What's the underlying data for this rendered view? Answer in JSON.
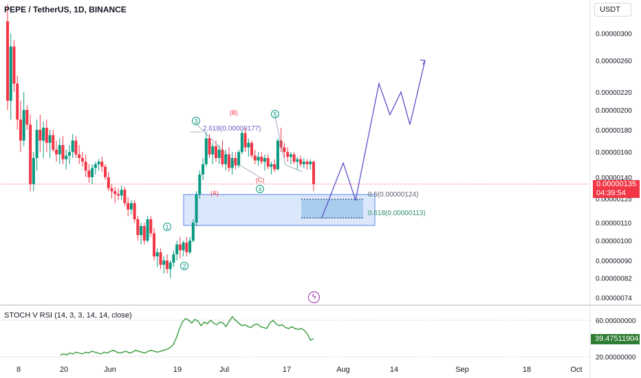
{
  "header": {
    "symbol_title": "PEPE / TetherUS, 1D, BINANCE",
    "currency": "USDT"
  },
  "colors": {
    "up": "#089981",
    "down": "#f23645",
    "projection": "#5b4fc9",
    "fib_label": "#2a8a6a",
    "stoch_line": "#43a047",
    "zone_fill": "#dbe7fb",
    "zone_border": "#5b84e8"
  },
  "last_price": {
    "value": "0.00000135",
    "countdown": "04:39:54"
  },
  "annotations": {
    "fib_ext": "2.618(0.00000177)",
    "fib_05": "0.5(0.00000124)",
    "fib_0618": "0.618(0.00000113)",
    "waves": [
      {
        "label": "1",
        "kind": "impulse"
      },
      {
        "label": "2",
        "kind": "impulse"
      },
      {
        "label": "3",
        "kind": "impulse"
      },
      {
        "label": "4",
        "kind": "impulse"
      },
      {
        "label": "5",
        "kind": "impulse"
      },
      {
        "label": "(A)",
        "kind": "corrective"
      },
      {
        "label": "(B)",
        "kind": "corrective"
      },
      {
        "label": "(C)",
        "kind": "corrective"
      }
    ]
  },
  "indicator": {
    "title": "STOCH V RSI (14, 3, 3, 14, 14, close)",
    "current": "39.47511904",
    "axis_labels": [
      "60.00000000",
      "20.00000000"
    ]
  },
  "chart_data": {
    "type": "candlestick",
    "title": "PEPE / TetherUS, 1D, BINANCE",
    "y_scale": "log",
    "y_ticks": [
      "0.00000300",
      "0.00000260",
      "0.00000220",
      "0.00000200",
      "0.00000180",
      "0.00000160",
      "0.00000140",
      "0.00000125",
      "0.00000110",
      "0.00000100",
      "0.00000090",
      "0.00000082",
      "0.00000074"
    ],
    "x_ticks": [
      "8",
      "20",
      "Jun",
      "19",
      "Jul",
      "17",
      "Aug",
      "14",
      "Sep",
      "18",
      "Oct"
    ],
    "current_price": 1.35e-06,
    "candles": [
      {
        "o": 3.2,
        "h": 3.5,
        "l": 2.0,
        "c": 2.1
      },
      {
        "o": 2.1,
        "h": 3.0,
        "l": 1.9,
        "c": 2.8
      },
      {
        "o": 2.8,
        "h": 2.9,
        "l": 2.2,
        "c": 2.3
      },
      {
        "o": 2.3,
        "h": 2.4,
        "l": 1.8,
        "c": 1.9
      },
      {
        "o": 1.9,
        "h": 2.1,
        "l": 1.6,
        "c": 1.7
      },
      {
        "o": 1.7,
        "h": 2.2,
        "l": 1.65,
        "c": 2.0
      },
      {
        "o": 2.0,
        "h": 2.05,
        "l": 1.8,
        "c": 1.85
      },
      {
        "o": 1.85,
        "h": 1.95,
        "l": 1.3,
        "c": 1.35
      },
      {
        "o": 1.35,
        "h": 1.6,
        "l": 1.3,
        "c": 1.55
      },
      {
        "o": 1.55,
        "h": 1.9,
        "l": 1.45,
        "c": 1.8
      },
      {
        "o": 1.8,
        "h": 1.95,
        "l": 1.6,
        "c": 1.7
      },
      {
        "o": 1.7,
        "h": 1.88,
        "l": 1.55,
        "c": 1.82
      },
      {
        "o": 1.82,
        "h": 1.9,
        "l": 1.6,
        "c": 1.68
      },
      {
        "o": 1.68,
        "h": 1.8,
        "l": 1.55,
        "c": 1.75
      },
      {
        "o": 1.75,
        "h": 1.8,
        "l": 1.6,
        "c": 1.62
      },
      {
        "o": 1.62,
        "h": 1.7,
        "l": 1.52,
        "c": 1.58
      },
      {
        "o": 1.58,
        "h": 1.72,
        "l": 1.5,
        "c": 1.66
      },
      {
        "o": 1.66,
        "h": 1.74,
        "l": 1.5,
        "c": 1.54
      },
      {
        "o": 1.54,
        "h": 1.62,
        "l": 1.46,
        "c": 1.57
      },
      {
        "o": 1.57,
        "h": 1.66,
        "l": 1.5,
        "c": 1.6
      },
      {
        "o": 1.6,
        "h": 1.76,
        "l": 1.55,
        "c": 1.7
      },
      {
        "o": 1.7,
        "h": 1.74,
        "l": 1.55,
        "c": 1.58
      },
      {
        "o": 1.58,
        "h": 1.66,
        "l": 1.5,
        "c": 1.55
      },
      {
        "o": 1.55,
        "h": 1.6,
        "l": 1.48,
        "c": 1.52
      },
      {
        "o": 1.52,
        "h": 1.58,
        "l": 1.4,
        "c": 1.45
      },
      {
        "o": 1.45,
        "h": 1.5,
        "l": 1.36,
        "c": 1.4
      },
      {
        "o": 1.4,
        "h": 1.5,
        "l": 1.35,
        "c": 1.47
      },
      {
        "o": 1.47,
        "h": 1.52,
        "l": 1.42,
        "c": 1.5
      },
      {
        "o": 1.5,
        "h": 1.54,
        "l": 1.45,
        "c": 1.52
      },
      {
        "o": 1.52,
        "h": 1.56,
        "l": 1.44,
        "c": 1.48
      },
      {
        "o": 1.48,
        "h": 1.5,
        "l": 1.38,
        "c": 1.4
      },
      {
        "o": 1.4,
        "h": 1.44,
        "l": 1.3,
        "c": 1.32
      },
      {
        "o": 1.32,
        "h": 1.35,
        "l": 1.25,
        "c": 1.3
      },
      {
        "o": 1.3,
        "h": 1.33,
        "l": 1.22,
        "c": 1.28
      },
      {
        "o": 1.28,
        "h": 1.32,
        "l": 1.24,
        "c": 1.27
      },
      {
        "o": 1.27,
        "h": 1.34,
        "l": 1.24,
        "c": 1.31
      },
      {
        "o": 1.31,
        "h": 1.33,
        "l": 1.2,
        "c": 1.22
      },
      {
        "o": 1.22,
        "h": 1.26,
        "l": 1.14,
        "c": 1.18
      },
      {
        "o": 1.18,
        "h": 1.24,
        "l": 1.15,
        "c": 1.22
      },
      {
        "o": 1.22,
        "h": 1.24,
        "l": 1.1,
        "c": 1.12
      },
      {
        "o": 1.12,
        "h": 1.14,
        "l": 1.0,
        "c": 1.03
      },
      {
        "o": 1.03,
        "h": 1.1,
        "l": 0.98,
        "c": 1.08
      },
      {
        "o": 1.08,
        "h": 1.1,
        "l": 0.98,
        "c": 1.0
      },
      {
        "o": 1.0,
        "h": 1.14,
        "l": 0.99,
        "c": 1.12
      },
      {
        "o": 1.12,
        "h": 1.14,
        "l": 1.02,
        "c": 1.04
      },
      {
        "o": 1.04,
        "h": 1.07,
        "l": 0.9,
        "c": 0.92
      },
      {
        "o": 0.92,
        "h": 0.96,
        "l": 0.87,
        "c": 0.94
      },
      {
        "o": 0.94,
        "h": 0.96,
        "l": 0.86,
        "c": 0.88
      },
      {
        "o": 0.88,
        "h": 0.92,
        "l": 0.84,
        "c": 0.9
      },
      {
        "o": 0.9,
        "h": 0.93,
        "l": 0.84,
        "c": 0.86
      },
      {
        "o": 0.86,
        "h": 0.9,
        "l": 0.82,
        "c": 0.89
      },
      {
        "o": 0.89,
        "h": 0.95,
        "l": 0.87,
        "c": 0.93
      },
      {
        "o": 0.93,
        "h": 1.0,
        "l": 0.9,
        "c": 0.98
      },
      {
        "o": 0.98,
        "h": 1.02,
        "l": 0.91,
        "c": 0.95
      },
      {
        "o": 0.95,
        "h": 1.0,
        "l": 0.92,
        "c": 0.99
      },
      {
        "o": 0.99,
        "h": 1.02,
        "l": 0.92,
        "c": 0.94
      },
      {
        "o": 0.94,
        "h": 1.02,
        "l": 0.93,
        "c": 1.0
      },
      {
        "o": 1.0,
        "h": 1.12,
        "l": 0.99,
        "c": 1.1
      },
      {
        "o": 1.1,
        "h": 1.3,
        "l": 1.08,
        "c": 1.28
      },
      {
        "o": 1.28,
        "h": 1.45,
        "l": 1.25,
        "c": 1.42
      },
      {
        "o": 1.42,
        "h": 1.55,
        "l": 1.38,
        "c": 1.5
      },
      {
        "o": 1.5,
        "h": 1.78,
        "l": 1.48,
        "c": 1.72
      },
      {
        "o": 1.72,
        "h": 1.76,
        "l": 1.55,
        "c": 1.58
      },
      {
        "o": 1.58,
        "h": 1.68,
        "l": 1.5,
        "c": 1.65
      },
      {
        "o": 1.65,
        "h": 1.7,
        "l": 1.52,
        "c": 1.55
      },
      {
        "o": 1.55,
        "h": 1.66,
        "l": 1.5,
        "c": 1.62
      },
      {
        "o": 1.62,
        "h": 1.7,
        "l": 1.48,
        "c": 1.5
      },
      {
        "o": 1.5,
        "h": 1.62,
        "l": 1.45,
        "c": 1.58
      },
      {
        "o": 1.58,
        "h": 1.64,
        "l": 1.44,
        "c": 1.47
      },
      {
        "o": 1.47,
        "h": 1.6,
        "l": 1.42,
        "c": 1.55
      },
      {
        "o": 1.55,
        "h": 1.6,
        "l": 1.46,
        "c": 1.49
      },
      {
        "o": 1.49,
        "h": 1.62,
        "l": 1.47,
        "c": 1.6
      },
      {
        "o": 1.6,
        "h": 1.8,
        "l": 1.58,
        "c": 1.77
      },
      {
        "o": 1.77,
        "h": 1.82,
        "l": 1.6,
        "c": 1.64
      },
      {
        "o": 1.64,
        "h": 1.72,
        "l": 1.56,
        "c": 1.68
      },
      {
        "o": 1.68,
        "h": 1.7,
        "l": 1.55,
        "c": 1.57
      },
      {
        "o": 1.57,
        "h": 1.62,
        "l": 1.5,
        "c": 1.53
      },
      {
        "o": 1.53,
        "h": 1.6,
        "l": 1.49,
        "c": 1.56
      },
      {
        "o": 1.56,
        "h": 1.6,
        "l": 1.5,
        "c": 1.52
      },
      {
        "o": 1.52,
        "h": 1.58,
        "l": 1.45,
        "c": 1.55
      },
      {
        "o": 1.55,
        "h": 1.58,
        "l": 1.46,
        "c": 1.48
      },
      {
        "o": 1.48,
        "h": 1.52,
        "l": 1.42,
        "c": 1.5
      },
      {
        "o": 1.5,
        "h": 1.54,
        "l": 1.44,
        "c": 1.46
      },
      {
        "o": 1.46,
        "h": 1.72,
        "l": 1.45,
        "c": 1.7
      },
      {
        "o": 1.7,
        "h": 1.82,
        "l": 1.6,
        "c": 1.64
      },
      {
        "o": 1.64,
        "h": 1.68,
        "l": 1.55,
        "c": 1.6
      },
      {
        "o": 1.6,
        "h": 1.64,
        "l": 1.52,
        "c": 1.56
      },
      {
        "o": 1.56,
        "h": 1.6,
        "l": 1.5,
        "c": 1.58
      },
      {
        "o": 1.58,
        "h": 1.6,
        "l": 1.5,
        "c": 1.52
      },
      {
        "o": 1.52,
        "h": 1.56,
        "l": 1.46,
        "c": 1.54
      },
      {
        "o": 1.54,
        "h": 1.57,
        "l": 1.48,
        "c": 1.5
      },
      {
        "o": 1.5,
        "h": 1.55,
        "l": 1.47,
        "c": 1.52
      },
      {
        "o": 1.52,
        "h": 1.54,
        "l": 1.46,
        "c": 1.5
      },
      {
        "o": 1.5,
        "h": 1.54,
        "l": 1.46,
        "c": 1.52
      },
      {
        "o": 1.52,
        "h": 1.53,
        "l": 1.3,
        "c": 1.35
      }
    ],
    "projection_path_prices": [
      1.13,
      1.27,
      1.51,
      1.24,
      1.9,
      2.3,
      1.95,
      2.2,
      1.85,
      2.6
    ],
    "stoch_rsi": [
      22,
      23,
      22,
      24,
      23,
      25,
      24,
      23,
      25,
      24,
      26,
      25,
      24,
      23,
      25,
      24,
      26,
      27,
      25,
      24,
      25,
      26,
      24,
      25,
      27,
      26,
      25,
      24,
      26,
      27,
      26,
      25,
      26,
      27,
      28,
      30,
      33,
      40,
      50,
      58,
      62,
      60,
      57,
      61,
      59,
      54,
      58,
      56,
      60,
      57,
      55,
      58,
      57,
      53,
      59,
      64,
      60,
      57,
      54,
      55,
      53,
      52,
      55,
      56,
      53,
      52,
      51,
      57,
      60,
      56,
      54,
      55,
      52,
      51,
      53,
      51,
      50,
      51,
      49,
      45,
      38,
      40
    ]
  }
}
